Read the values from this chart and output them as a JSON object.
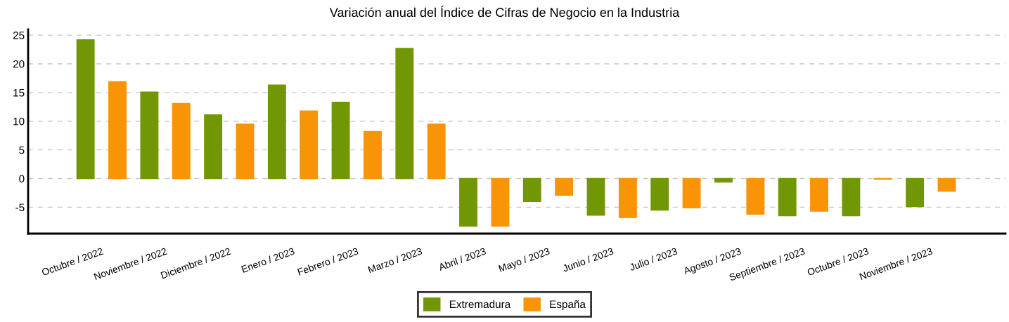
{
  "chart_data": {
    "type": "bar",
    "title": "Variación anual del Índice de Cifras de Negocio en la Industria",
    "categories": [
      "Octubre / 2022",
      "Noviembre / 2022",
      "Diciembre / 2022",
      "Enero / 2023",
      "Febrero / 2023",
      "Marzo / 2023",
      "Abril / 2023",
      "Mayo / 2023",
      "Junio / 2023",
      "Julio / 2023",
      "Agosto / 2023",
      "Septiembre / 2023",
      "Octubre / 2023",
      "Noviembre / 2023"
    ],
    "series": [
      {
        "name": "Extremadura",
        "color": "#729704",
        "values": [
          24.2,
          15.1,
          11.1,
          16.3,
          13.3,
          22.7,
          -8.3,
          -4.0,
          -6.4,
          -5.5,
          -0.6,
          -6.5,
          -6.5,
          -4.9
        ]
      },
      {
        "name": "España",
        "color": "#f89406",
        "values": [
          16.9,
          13.1,
          9.5,
          11.8,
          8.2,
          9.5,
          -8.3,
          -2.9,
          -6.8,
          -5.1,
          -6.2,
          -5.7,
          -0.1,
          -2.2
        ]
      }
    ],
    "ylim": [
      -9.6,
      26
    ],
    "yticks": [
      -5,
      0,
      5,
      10,
      15,
      20,
      25
    ],
    "grid": "y",
    "legend": "bottom"
  }
}
